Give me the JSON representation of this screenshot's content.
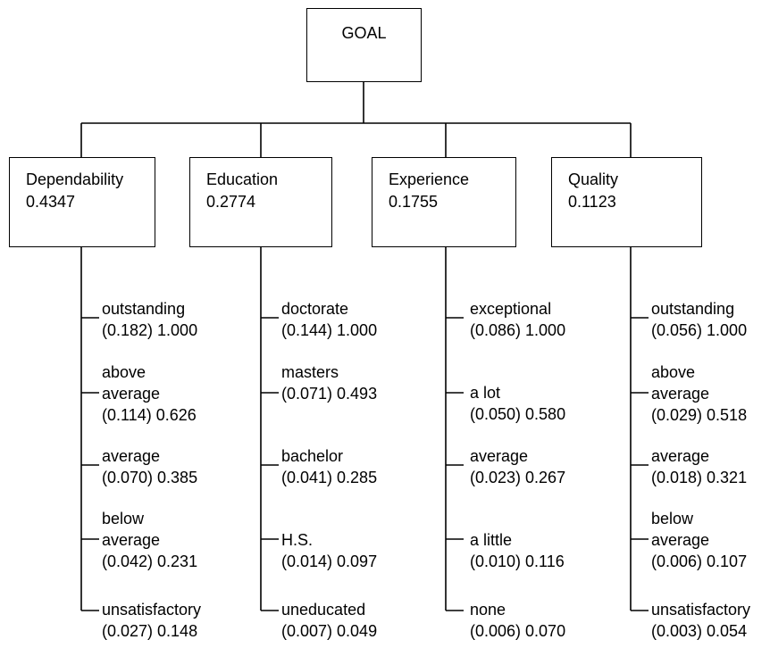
{
  "goal": "GOAL",
  "criteria": [
    {
      "name": "Dependability",
      "weight": "0.4347",
      "ratings": [
        {
          "label": [
            "outstanding"
          ],
          "values": "(0.182) 1.000"
        },
        {
          "label": [
            "above",
            "average"
          ],
          "values": "(0.114) 0.626"
        },
        {
          "label": [
            "average"
          ],
          "values": "(0.070) 0.385"
        },
        {
          "label": [
            "below",
            "average"
          ],
          "values": "(0.042) 0.231"
        },
        {
          "label": [
            "unsatisfactory"
          ],
          "values": "(0.027) 0.148"
        }
      ]
    },
    {
      "name": "Education",
      "weight": "0.2774",
      "ratings": [
        {
          "label": [
            "doctorate"
          ],
          "values": "(0.144) 1.000"
        },
        {
          "label": [
            "masters"
          ],
          "values": "(0.071) 0.493"
        },
        {
          "label": [
            "bachelor"
          ],
          "values": "(0.041) 0.285"
        },
        {
          "label": [
            "H.S."
          ],
          "values": "(0.014) 0.097"
        },
        {
          "label": [
            "uneducated"
          ],
          "values": "(0.007) 0.049"
        }
      ]
    },
    {
      "name": "Experience",
      "weight": "0.1755",
      "ratings": [
        {
          "label": [
            "exceptional"
          ],
          "values": "(0.086) 1.000"
        },
        {
          "label": [
            "a lot"
          ],
          "values": "(0.050) 0.580"
        },
        {
          "label": [
            "average"
          ],
          "values": "(0.023) 0.267"
        },
        {
          "label": [
            "a little"
          ],
          "values": "(0.010) 0.116"
        },
        {
          "label": [
            "none"
          ],
          "values": "(0.006) 0.070"
        }
      ]
    },
    {
      "name": "Quality",
      "weight": "0.1123",
      "ratings": [
        {
          "label": [
            "outstanding"
          ],
          "values": "(0.056) 1.000"
        },
        {
          "label": [
            "above",
            "average"
          ],
          "values": "(0.029) 0.518"
        },
        {
          "label": [
            "average"
          ],
          "values": "(0.018) 0.321"
        },
        {
          "label": [
            "below",
            "average"
          ],
          "values": "(0.006) 0.107"
        },
        {
          "label": [
            "unsatisfactory"
          ],
          "values": "(0.003) 0.054"
        }
      ]
    }
  ]
}
